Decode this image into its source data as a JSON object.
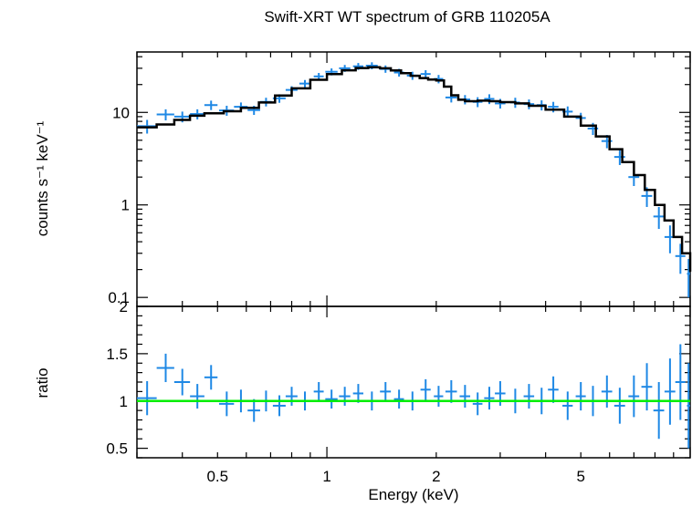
{
  "chart_data": [
    {
      "type": "scatter",
      "panel": "spectrum",
      "title": "Swift-XRT WT spectrum of GRB 110205A",
      "ylabel": "counts s⁻¹ keV⁻¹",
      "xlabel": "",
      "xscale": "log",
      "yscale": "log",
      "xlim": [
        0.3,
        10
      ],
      "ylim": [
        0.08,
        45
      ],
      "x_ticks": [
        0.5,
        1,
        2,
        5
      ],
      "y_ticks": [
        0.1,
        1,
        10
      ],
      "y_tick_labels": [
        "0.1",
        "1",
        "10"
      ],
      "colors": {
        "data": "#1e88e5",
        "model": "#000000"
      },
      "series": [
        {
          "role": "data",
          "x": [
            0.32,
            0.36,
            0.4,
            0.44,
            0.48,
            0.53,
            0.58,
            0.63,
            0.68,
            0.74,
            0.8,
            0.87,
            0.95,
            1.03,
            1.12,
            1.22,
            1.33,
            1.45,
            1.58,
            1.72,
            1.87,
            2.03,
            2.2,
            2.4,
            2.6,
            2.8,
            3.0,
            3.3,
            3.6,
            3.9,
            4.2,
            4.6,
            5.0,
            5.4,
            5.9,
            6.4,
            7.0,
            7.6,
            8.2,
            8.8,
            9.4,
            9.9
          ],
          "y": [
            7.1,
            9.5,
            9.0,
            9.6,
            12.0,
            10.5,
            11.5,
            10.6,
            13.0,
            14.2,
            17.5,
            20.5,
            24.5,
            27.5,
            30.0,
            31.5,
            32.0,
            29.5,
            27.0,
            25.0,
            26.0,
            23.0,
            14.5,
            13.8,
            13.0,
            14.0,
            12.5,
            12.8,
            12.3,
            12.0,
            11.5,
            10.2,
            8.7,
            6.7,
            4.9,
            3.3,
            2.0,
            1.25,
            0.75,
            0.45,
            0.28,
            0.18
          ],
          "xerr": [
            0.02,
            0.02,
            0.02,
            0.02,
            0.02,
            0.025,
            0.025,
            0.025,
            0.025,
            0.03,
            0.03,
            0.03,
            0.03,
            0.04,
            0.04,
            0.04,
            0.05,
            0.05,
            0.05,
            0.06,
            0.06,
            0.06,
            0.08,
            0.08,
            0.08,
            0.09,
            0.1,
            0.1,
            0.12,
            0.12,
            0.14,
            0.15,
            0.16,
            0.18,
            0.2,
            0.22,
            0.24,
            0.26,
            0.28,
            0.3,
            0.3,
            0.1
          ],
          "yerr": [
            1.2,
            1.3,
            1.2,
            1.2,
            1.4,
            1.3,
            1.3,
            1.2,
            1.4,
            1.5,
            1.7,
            1.9,
            2.2,
            2.4,
            2.6,
            2.7,
            2.8,
            2.7,
            2.6,
            2.5,
            2.6,
            2.4,
            1.7,
            1.6,
            1.6,
            1.7,
            1.5,
            1.6,
            1.5,
            1.5,
            1.5,
            1.4,
            1.2,
            1.0,
            0.8,
            0.6,
            0.4,
            0.3,
            0.2,
            0.15,
            0.1,
            0.08
          ]
        },
        {
          "role": "model",
          "x": [
            0.3,
            0.34,
            0.38,
            0.42,
            0.46,
            0.52,
            0.58,
            0.65,
            0.72,
            0.8,
            0.9,
            1.0,
            1.1,
            1.2,
            1.3,
            1.4,
            1.5,
            1.6,
            1.7,
            1.8,
            1.9,
            2.0,
            2.1,
            2.2,
            2.3,
            2.4,
            2.6,
            2.8,
            3.0,
            3.3,
            3.6,
            4.0,
            4.5,
            5.0,
            5.5,
            6.0,
            6.5,
            7.0,
            7.5,
            8.0,
            8.5,
            9.0,
            9.5,
            10.0
          ],
          "y": [
            6.9,
            7.4,
            8.3,
            9.2,
            9.8,
            10.3,
            11.2,
            12.8,
            15.2,
            18.2,
            22.5,
            26.0,
            28.5,
            30.2,
            30.8,
            30.0,
            28.4,
            26.6,
            24.9,
            23.5,
            22.6,
            22.1,
            19.0,
            15.3,
            13.7,
            13.2,
            13.4,
            13.2,
            12.9,
            12.5,
            11.8,
            10.7,
            9.0,
            7.2,
            5.5,
            4.0,
            2.9,
            2.1,
            1.45,
            1.0,
            0.68,
            0.45,
            0.3,
            0.19
          ]
        }
      ]
    },
    {
      "type": "scatter",
      "panel": "ratio",
      "title": "",
      "xlabel": "Energy (keV)",
      "ylabel": "ratio",
      "xscale": "log",
      "yscale": "linear",
      "xlim": [
        0.3,
        10
      ],
      "ylim": [
        0.4,
        2.0
      ],
      "x_ticks": [
        0.5,
        1,
        2,
        5
      ],
      "x_tick_labels": [
        "0.5",
        "1",
        "2",
        "5"
      ],
      "y_ticks": [
        0.5,
        1,
        1.5,
        2
      ],
      "y_tick_labels": [
        "0.5",
        "1",
        "1.5",
        "2"
      ],
      "reference_line": 1.0,
      "colors": {
        "data": "#1e88e5",
        "reference": "#00ee00"
      },
      "series": [
        {
          "role": "data",
          "x": [
            0.32,
            0.36,
            0.4,
            0.44,
            0.48,
            0.53,
            0.58,
            0.63,
            0.68,
            0.74,
            0.8,
            0.87,
            0.95,
            1.03,
            1.12,
            1.22,
            1.33,
            1.45,
            1.58,
            1.72,
            1.87,
            2.03,
            2.2,
            2.4,
            2.6,
            2.8,
            3.0,
            3.3,
            3.6,
            3.9,
            4.2,
            4.6,
            5.0,
            5.4,
            5.9,
            6.4,
            7.0,
            7.6,
            8.2,
            8.8,
            9.4,
            9.9
          ],
          "y": [
            1.03,
            1.35,
            1.2,
            1.05,
            1.25,
            0.97,
            1.0,
            0.9,
            1.0,
            0.95,
            1.05,
            1.0,
            1.1,
            1.02,
            1.05,
            1.08,
            1.0,
            1.1,
            1.02,
            1.0,
            1.12,
            1.05,
            1.1,
            1.05,
            0.97,
            1.03,
            1.08,
            1.0,
            1.05,
            1.0,
            1.12,
            0.95,
            1.05,
            1.0,
            1.1,
            0.95,
            1.05,
            1.15,
            0.9,
            1.1,
            1.2,
            0.95
          ],
          "yerr": [
            0.18,
            0.15,
            0.14,
            0.13,
            0.13,
            0.13,
            0.12,
            0.12,
            0.11,
            0.11,
            0.1,
            0.1,
            0.1,
            0.1,
            0.1,
            0.1,
            0.1,
            0.1,
            0.1,
            0.1,
            0.11,
            0.11,
            0.12,
            0.12,
            0.12,
            0.12,
            0.13,
            0.13,
            0.13,
            0.14,
            0.14,
            0.15,
            0.15,
            0.16,
            0.17,
            0.19,
            0.22,
            0.25,
            0.3,
            0.35,
            0.4,
            0.45
          ]
        }
      ]
    }
  ]
}
